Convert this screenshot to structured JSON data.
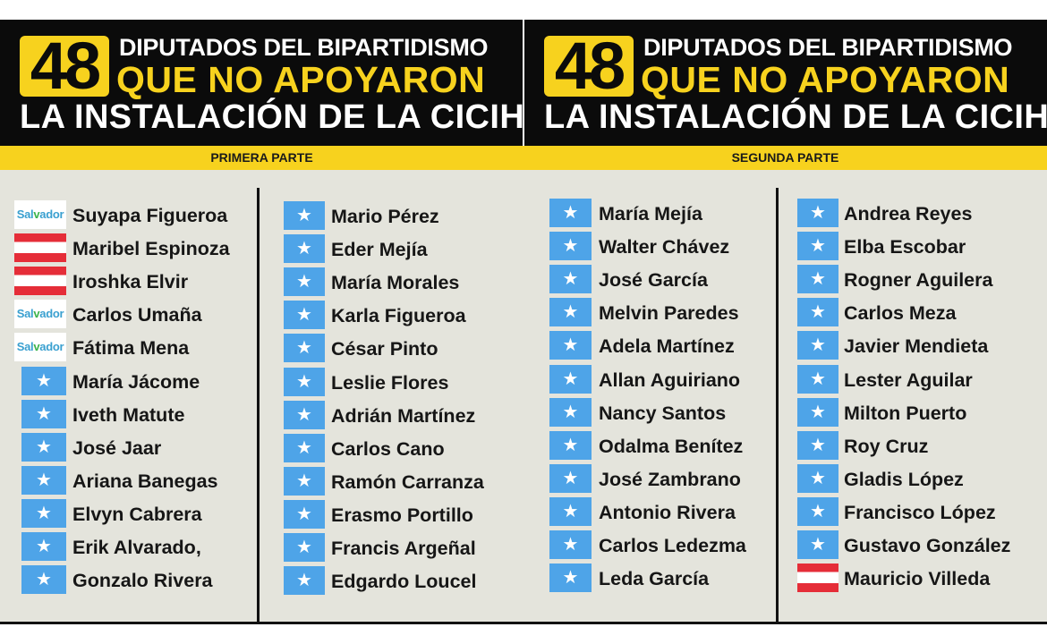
{
  "header": {
    "number": "48",
    "line1": "DIPUTADOS DEL BIPARTIDISMO",
    "line2": "QUE NO APOYARON",
    "line3": "LA INSTALACIÓN DE LA CICIH"
  },
  "sections": [
    {
      "label": "PRIMERA PARTE"
    },
    {
      "label": "SEGUNDA PARTE"
    }
  ],
  "colors": {
    "black": "#0b0b0b",
    "yellow": "#f7d21e",
    "body_bg": "#e4e4dc",
    "star_blue": "#4ea4e8",
    "stripe_red": "#e52d38"
  },
  "logo_text": "Salvador",
  "columns": [
    {
      "items": [
        {
          "name": "Suyapa Figueroa",
          "icon": "salvador-logo"
        },
        {
          "name": "Maribel Espinoza",
          "icon": "red-white-flag"
        },
        {
          "name": "Iroshka Elvir",
          "icon": "red-white-flag"
        },
        {
          "name": "Carlos Umaña",
          "icon": "salvador-logo"
        },
        {
          "name": "Fátima Mena",
          "icon": "salvador-logo"
        },
        {
          "name": "María Jácome",
          "icon": "blue-star-flag"
        },
        {
          "name": "Iveth Matute",
          "icon": "blue-star-flag"
        },
        {
          "name": "José Jaar",
          "icon": "blue-star-flag"
        },
        {
          "name": "Ariana Banegas",
          "icon": "blue-star-flag"
        },
        {
          "name": "Elvyn Cabrera",
          "icon": "blue-star-flag"
        },
        {
          "name": "Erik Alvarado,",
          "icon": "blue-star-flag"
        },
        {
          "name": "Gonzalo Rivera",
          "icon": "blue-star-flag"
        }
      ]
    },
    {
      "items": [
        {
          "name": "Mario Pérez",
          "icon": "blue-star-flag"
        },
        {
          "name": "Eder Mejía",
          "icon": "blue-star-flag"
        },
        {
          "name": "María Morales",
          "icon": "blue-star-flag"
        },
        {
          "name": "Karla Figueroa",
          "icon": "blue-star-flag"
        },
        {
          "name": "César Pinto",
          "icon": "blue-star-flag"
        },
        {
          "name": "Leslie Flores",
          "icon": "blue-star-flag"
        },
        {
          "name": "Adrián Martínez",
          "icon": "blue-star-flag"
        },
        {
          "name": "Carlos Cano",
          "icon": "blue-star-flag"
        },
        {
          "name": "Ramón Carranza",
          "icon": "blue-star-flag"
        },
        {
          "name": "Erasmo Portillo",
          "icon": "blue-star-flag"
        },
        {
          "name": "Francis Argeñal",
          "icon": "blue-star-flag"
        },
        {
          "name": "Edgardo Loucel",
          "icon": "blue-star-flag"
        }
      ]
    },
    {
      "items": [
        {
          "name": "María Mejía",
          "icon": "blue-star-flag"
        },
        {
          "name": "Walter Chávez",
          "icon": "blue-star-flag"
        },
        {
          "name": "José García",
          "icon": "blue-star-flag"
        },
        {
          "name": "Melvin Paredes",
          "icon": "blue-star-flag"
        },
        {
          "name": "Adela Martínez",
          "icon": "blue-star-flag"
        },
        {
          "name": "Allan Aguiriano",
          "icon": "blue-star-flag"
        },
        {
          "name": "Nancy Santos",
          "icon": "blue-star-flag"
        },
        {
          "name": "Odalma Benítez",
          "icon": "blue-star-flag"
        },
        {
          "name": "José Zambrano",
          "icon": "blue-star-flag"
        },
        {
          "name": "Antonio Rivera",
          "icon": "blue-star-flag"
        },
        {
          "name": "Carlos Ledezma",
          "icon": "blue-star-flag"
        },
        {
          "name": "Leda García",
          "icon": "blue-star-flag"
        }
      ]
    },
    {
      "items": [
        {
          "name": "Andrea Reyes",
          "icon": "blue-star-flag"
        },
        {
          "name": "Elba Escobar",
          "icon": "blue-star-flag"
        },
        {
          "name": "Rogner Aguilera",
          "icon": "blue-star-flag"
        },
        {
          "name": "Carlos Meza",
          "icon": "blue-star-flag"
        },
        {
          "name": "Javier Mendieta",
          "icon": "blue-star-flag"
        },
        {
          "name": "Lester Aguilar",
          "icon": "blue-star-flag"
        },
        {
          "name": "Milton Puerto",
          "icon": "blue-star-flag"
        },
        {
          "name": "Roy Cruz",
          "icon": "blue-star-flag"
        },
        {
          "name": "Gladis López",
          "icon": "blue-star-flag"
        },
        {
          "name": "Francisco López",
          "icon": "blue-star-flag"
        },
        {
          "name": "Gustavo González",
          "icon": "blue-star-flag"
        },
        {
          "name": "Mauricio Villeda",
          "icon": "red-white-flag"
        }
      ]
    }
  ]
}
